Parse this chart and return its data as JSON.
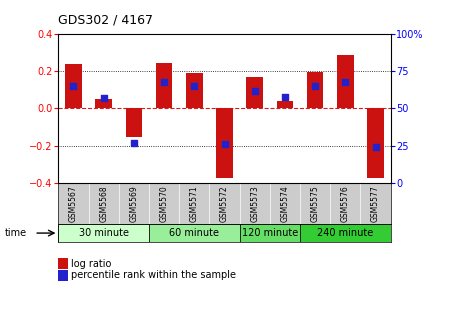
{
  "title": "GDS302 / 4167",
  "samples": [
    "GSM5567",
    "GSM5568",
    "GSM5569",
    "GSM5570",
    "GSM5571",
    "GSM5572",
    "GSM5573",
    "GSM5574",
    "GSM5575",
    "GSM5576",
    "GSM5577"
  ],
  "log_ratio": [
    0.24,
    0.05,
    -0.15,
    0.245,
    0.19,
    -0.37,
    0.17,
    0.04,
    0.195,
    0.285,
    -0.37
  ],
  "percentile": [
    65,
    57,
    27,
    68,
    65,
    26,
    62,
    58,
    65,
    68,
    24
  ],
  "ylim": [
    -0.4,
    0.4
  ],
  "right_ylim": [
    0,
    100
  ],
  "right_yticks": [
    0,
    25,
    50,
    75,
    100
  ],
  "right_yticklabels": [
    "0",
    "25",
    "50",
    "75",
    "100%"
  ],
  "left_yticks": [
    -0.4,
    -0.2,
    0.0,
    0.2,
    0.4
  ],
  "bar_color": "#cc1111",
  "dot_color": "#2222cc",
  "dot_size": 18,
  "groups": [
    {
      "label": "30 minute",
      "start": 0,
      "end": 3,
      "color": "#ccffcc"
    },
    {
      "label": "60 minute",
      "start": 3,
      "end": 6,
      "color": "#99ee99"
    },
    {
      "label": "120 minute",
      "start": 6,
      "end": 8,
      "color": "#66dd66"
    },
    {
      "label": "240 minute",
      "start": 8,
      "end": 11,
      "color": "#33cc33"
    }
  ],
  "time_label": "time",
  "legend_bar_label": "log ratio",
  "legend_dot_label": "percentile rank within the sample",
  "background_color": "#ffffff",
  "zero_line_color": "#cc2222",
  "bar_width": 0.55,
  "label_bg": "#cccccc"
}
